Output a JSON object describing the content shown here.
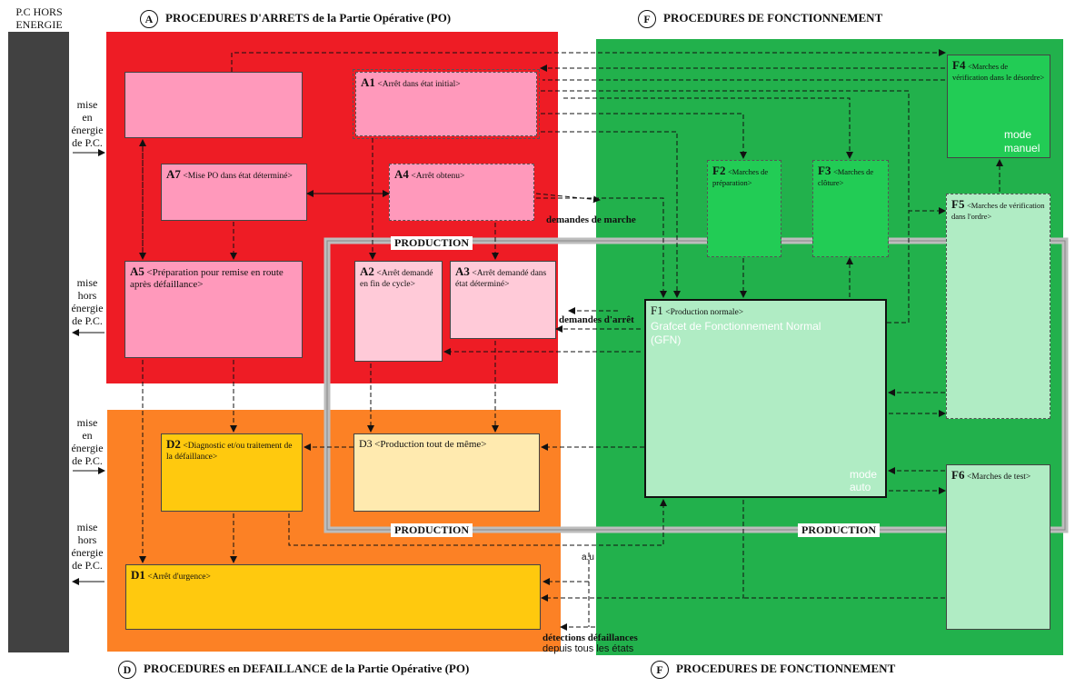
{
  "header": {
    "pc_hors": "P.C HORS\nENERGIE",
    "a_letter": "A",
    "a_title": "PROCEDURES D'ARRETS de la Partie Opérative (PO)",
    "f_letter_top": "F",
    "f_title_top": "PROCEDURES DE FONCTIONNEMENT",
    "d_letter": "D",
    "d_title": "PROCEDURES en DEFAILLANCE de la Partie Opérative (PO)",
    "f_letter_bottom": "F",
    "f_title_bottom": "PROCEDURES DE FONCTIONNEMENT"
  },
  "side_labels": {
    "mise_en_energie_1": "mise\nen\nénergie\nde P.C.",
    "mise_hors_energie_1": "mise\nhors\nénergie\nde P.C.",
    "mise_en_energie_2": "mise\nen\nénergie\nde P.C.",
    "mise_hors_energie_2": "mise\nhors\nénergie\nde P.C."
  },
  "boxes": {
    "a1": {
      "code": "A1",
      "label": "<Arrêt dans état initial>"
    },
    "a4": {
      "code": "A4",
      "label": "<Arrêt obtenu>"
    },
    "a7": {
      "code": "A7",
      "label": "<Mise PO dans état déterminé>"
    },
    "a5": {
      "code": "A5",
      "label": "<Préparation pour remise en route après défaillance>"
    },
    "a2": {
      "code": "A2",
      "label": "<Arrêt demandé en fin de cycle>"
    },
    "a3": {
      "code": "A3",
      "label": "<Arrêt demandé dans état déterminé>"
    },
    "d2": {
      "code": "D2",
      "label": "<Diagnostic et/ou traitement de la défaillance>"
    },
    "d3": {
      "code": "D3",
      "label": "<Production tout de même>"
    },
    "d1": {
      "code": "D1",
      "label": "<Arrêt d'urgence>"
    },
    "f1": {
      "code": "F1",
      "label": "<Production normale>",
      "sub": "Grafcet de Fonctionnement Normal\n(GFN)",
      "mode": "mode\nauto"
    },
    "f2": {
      "code": "F2",
      "label": "<Marches de préparation>"
    },
    "f3": {
      "code": "F3",
      "label": "<Marches de clôture>"
    },
    "f4": {
      "code": "F4",
      "label": "<Marches de vérification dans le désordre>",
      "mode": "mode\nmanuel"
    },
    "f5": {
      "code": "F5",
      "label": "<Marches de vérification dans l'ordre>"
    },
    "f6": {
      "code": "F6",
      "label": "<Marches de test>"
    }
  },
  "annotations": {
    "demandes_marche": "demandes de marche",
    "demandes_arret": "demandes d'arrêt",
    "production_1": "PRODUCTION",
    "production_2": "PRODUCTION",
    "production_3": "PRODUCTION",
    "au": "a.u",
    "detections": "détections défaillances",
    "depuis": "depuis tous les états"
  },
  "colors": {
    "red_zone": "#ee1c25",
    "orange_zone": "#fc8125",
    "green_zone": "#22b14c",
    "pink_box": "#ff99bb",
    "light_pink_box": "#ffcad8",
    "yellow_box": "#ffc90e",
    "light_yellow_box": "#ffeaaf",
    "light_green_box": "#b0ecc4",
    "green_box": "#22cc55",
    "dark_bar": "#414141"
  }
}
